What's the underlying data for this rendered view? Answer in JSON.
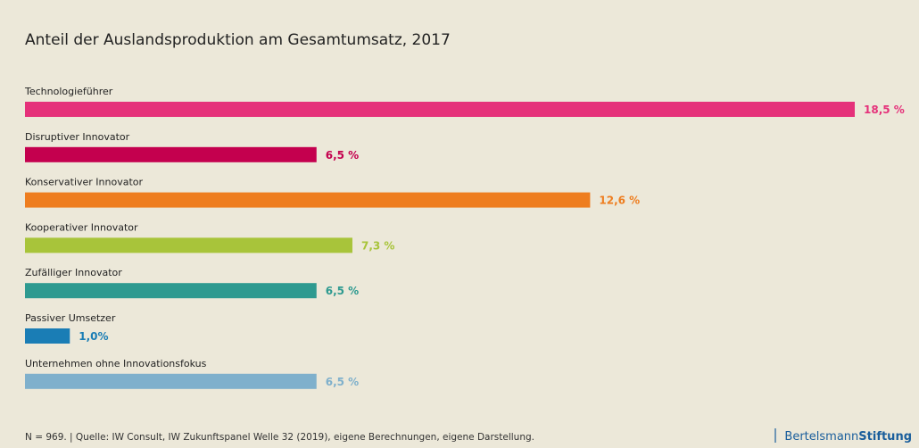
{
  "chart_data": {
    "type": "bar",
    "orientation": "horizontal",
    "title": "Anteil der Auslandsproduktion am Gesamtumsatz, 2017",
    "categories": [
      "Technologieführer",
      "Disruptiver Innovator",
      "Konservativer Innovator",
      "Kooperativer Innovator",
      "Zufälliger Innovator",
      "Passiver Umsetzer",
      "Unternehmen ohne Innovationsfokus"
    ],
    "values": [
      18.5,
      6.5,
      12.6,
      7.3,
      6.5,
      1.0,
      6.5
    ],
    "value_labels": [
      "18,5 %",
      "6,5 %",
      "12,6 %",
      "7,3 %",
      "6,5 %",
      "1,0%",
      "6,5 %"
    ],
    "colors": [
      "#e5317a",
      "#c4004e",
      "#ee7d1f",
      "#a8c43a",
      "#2e9a90",
      "#1a7db5",
      "#7fb0cc"
    ],
    "footnote": "N = 969.  |  Quelle: IW Consult, IW Zukunftspanel Welle 32 (2019), eigene Berechnungen, eigene Darstellung.",
    "brand": [
      "Bertelsmann",
      "Stiftung"
    ]
  }
}
